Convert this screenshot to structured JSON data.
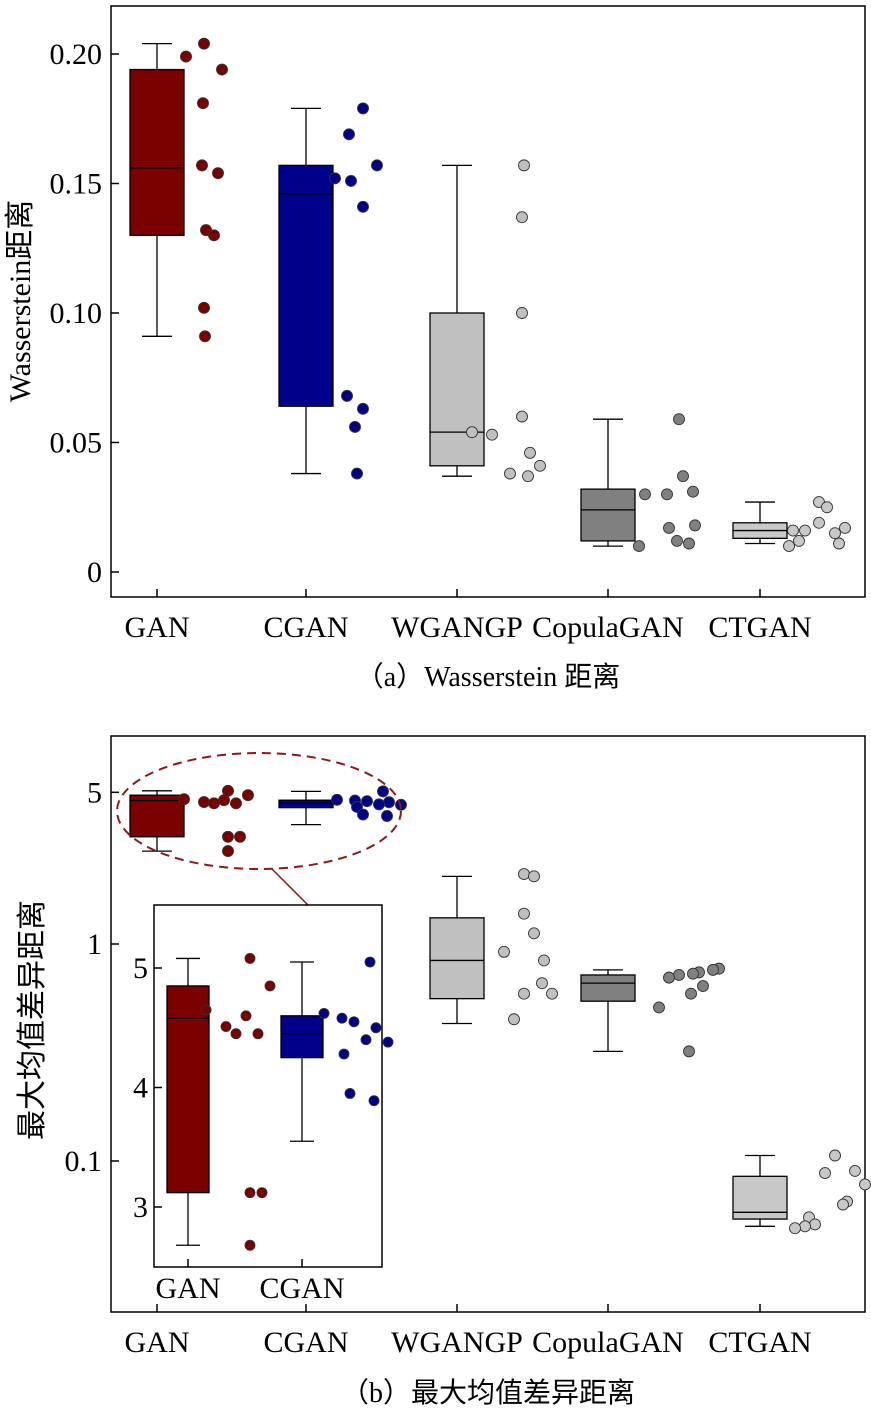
{
  "figure": {
    "panel_a_caption": "（a）Wasserstein 距离",
    "panel_b_caption": "（b）最大均值差异距离"
  },
  "colors": {
    "GAN": "#7b0000",
    "CGAN": "#00008b",
    "WGANGP": "#c0c0c0",
    "CopulaGAN": "#808080",
    "CTGAN": "#c8c8c8",
    "ellipse": "#8b1a1a"
  },
  "chart_data": [
    {
      "id": "wasserstein",
      "type": "box",
      "ylabel": "Wasserstein距离",
      "ylim": [
        -0.01,
        0.215
      ],
      "yticks": [
        0,
        0.05,
        0.1,
        0.15,
        0.2
      ],
      "ytick_labels": [
        "0",
        "0.05",
        "0.10",
        "0.15",
        "0.20"
      ],
      "categories": [
        "GAN",
        "CGAN",
        "WGANGP",
        "CopulaGAN",
        "CTGAN"
      ],
      "boxes": [
        {
          "name": "GAN",
          "whisker_low": 0.091,
          "q1": 0.13,
          "median": 0.156,
          "q3": 0.194,
          "whisker_high": 0.204
        },
        {
          "name": "CGAN",
          "whisker_low": 0.038,
          "q1": 0.064,
          "median": 0.146,
          "q3": 0.157,
          "whisker_high": 0.179
        },
        {
          "name": "WGANGP",
          "whisker_low": 0.037,
          "q1": 0.041,
          "median": 0.054,
          "q3": 0.1,
          "whisker_high": 0.157
        },
        {
          "name": "CopulaGAN",
          "whisker_low": 0.01,
          "q1": 0.012,
          "median": 0.024,
          "q3": 0.032,
          "whisker_high": 0.059
        },
        {
          "name": "CTGAN",
          "whisker_low": 0.011,
          "q1": 0.013,
          "median": 0.016,
          "q3": 0.019,
          "whisker_high": 0.027
        }
      ],
      "points": [
        {
          "name": "GAN",
          "values": [
            0.199,
            0.204,
            0.194,
            0.181,
            0.157,
            0.154,
            0.132,
            0.13,
            0.102,
            0.091
          ],
          "offsets": [
            -14,
            4,
            22,
            3,
            2,
            18,
            6,
            14,
            4,
            5
          ]
        },
        {
          "name": "CGAN",
          "values": [
            0.179,
            0.169,
            0.157,
            0.152,
            0.151,
            0.141,
            0.068,
            0.063,
            0.056,
            0.038
          ],
          "offsets": [
            14,
            0,
            28,
            -14,
            2,
            14,
            -2,
            14,
            6,
            8
          ]
        },
        {
          "name": "WGANGP",
          "values": [
            0.157,
            0.137,
            0.1,
            0.06,
            0.054,
            0.053,
            0.046,
            0.041,
            0.038,
            0.037
          ],
          "offsets": [
            24,
            22,
            22,
            22,
            -28,
            -8,
            30,
            40,
            10,
            28
          ]
        },
        {
          "name": "CopulaGAN",
          "values": [
            0.059,
            0.037,
            0.031,
            0.03,
            0.03,
            0.018,
            0.017,
            0.012,
            0.011,
            0.01
          ],
          "offsets": [
            28,
            32,
            42,
            -6,
            16,
            44,
            18,
            26,
            38,
            -12
          ]
        },
        {
          "name": "CTGAN",
          "values": [
            0.027,
            0.025,
            0.019,
            0.017,
            0.016,
            0.016,
            0.015,
            0.012,
            0.011,
            0.01
          ],
          "offsets": [
            16,
            24,
            16,
            42,
            2,
            -10,
            32,
            -4,
            36,
            -14
          ]
        }
      ]
    },
    {
      "id": "mmd",
      "type": "box",
      "yscale": "log",
      "ylabel": "最大均值差异距离",
      "ylim": [
        0.02,
        8.5
      ],
      "yticks": [
        0.1,
        1,
        5
      ],
      "ytick_labels": [
        "0.1",
        "1",
        "5"
      ],
      "categories": [
        "GAN",
        "CGAN",
        "WGANGP",
        "CopulaGAN",
        "CTGAN"
      ],
      "boxes": [
        {
          "name": "GAN",
          "whisker_low": 2.68,
          "q1": 3.12,
          "median": 4.58,
          "q3": 4.85,
          "whisker_high": 5.08
        },
        {
          "name": "CGAN",
          "whisker_low": 3.55,
          "q1": 4.25,
          "median": 4.45,
          "q3": 4.6,
          "whisker_high": 5.05
        },
        {
          "name": "WGANGP",
          "whisker_low": 0.43,
          "q1": 0.56,
          "median": 0.84,
          "q3": 1.32,
          "whisker_high": 2.05
        },
        {
          "name": "CopulaGAN",
          "whisker_low": 0.32,
          "q1": 0.545,
          "median": 0.66,
          "q3": 0.72,
          "whisker_high": 0.76
        },
        {
          "name": "CTGAN",
          "whisker_low": 0.05,
          "q1": 0.054,
          "median": 0.058,
          "q3": 0.085,
          "whisker_high": 0.106
        }
      ],
      "points": [
        {
          "name": "GAN",
          "values": [
            5.08,
            4.65,
            4.6,
            4.85,
            4.51,
            4.45,
            4.45,
            3.12,
            3.12,
            2.68
          ],
          "offsets": [
            28,
            -16,
            24,
            48,
            4,
            14,
            36,
            28,
            40,
            28
          ]
        },
        {
          "name": "CGAN",
          "values": [
            5.05,
            4.62,
            4.58,
            4.55,
            4.5,
            4.4,
            4.38,
            4.28,
            3.95,
            3.89
          ],
          "offsets": [
            34,
            -12,
            6,
            18,
            40,
            30,
            52,
            8,
            14,
            38
          ]
        },
        {
          "name": "WGANGP",
          "values": [
            2.1,
            2.05,
            1.38,
            1.12,
            0.92,
            0.84,
            0.66,
            0.59,
            0.59,
            0.45
          ],
          "offsets": [
            24,
            34,
            24,
            34,
            4,
            44,
            42,
            24,
            52,
            14
          ]
        },
        {
          "name": "CopulaGAN",
          "values": [
            0.77,
            0.76,
            0.74,
            0.73,
            0.72,
            0.7,
            0.64,
            0.59,
            0.51,
            0.32
          ],
          "offsets": [
            68,
            62,
            48,
            42,
            28,
            18,
            52,
            40,
            8,
            38
          ]
        },
        {
          "name": "CTGAN",
          "values": [
            0.106,
            0.09,
            0.088,
            0.078,
            0.065,
            0.063,
            0.055,
            0.051,
            0.05,
            0.049
          ],
          "offsets": [
            32,
            52,
            22,
            62,
            44,
            40,
            6,
            12,
            2,
            -8
          ]
        }
      ],
      "inset": {
        "categories": [
          "GAN",
          "CGAN"
        ],
        "ylim": [
          2.55,
          5.3
        ],
        "yticks": [
          3,
          4,
          5
        ],
        "ytick_labels": [
          "3",
          "4",
          "5"
        ]
      }
    }
  ]
}
